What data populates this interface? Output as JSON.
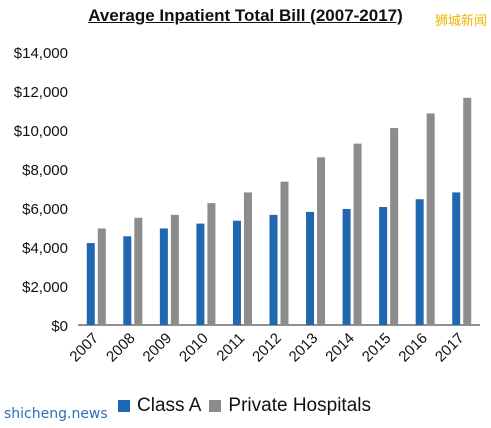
{
  "chart_data": {
    "type": "bar",
    "title": "Average Inpatient Total Bill (2007-2017)",
    "categories": [
      "2007",
      "2008",
      "2009",
      "2010",
      "2011",
      "2012",
      "2013",
      "2014",
      "2015",
      "2016",
      "2017"
    ],
    "series": [
      {
        "name": "Class A",
        "color": "#1f67b1",
        "values": [
          4200,
          4550,
          4950,
          5200,
          5350,
          5650,
          5800,
          5950,
          6050,
          6450,
          6800
        ]
      },
      {
        "name": "Private Hospitals",
        "color": "#8c8c8c",
        "values": [
          4950,
          5500,
          5650,
          6250,
          6800,
          7350,
          8600,
          9300,
          10100,
          10850,
          11650
        ]
      }
    ],
    "ylim": [
      0,
      14000
    ],
    "yticks": [
      "$0",
      "$2,000",
      "$4,000",
      "$6,000",
      "$8,000",
      "$10,000",
      "$12,000",
      "$14,000"
    ],
    "ytick_values": [
      0,
      2000,
      4000,
      6000,
      8000,
      10000,
      12000,
      14000
    ],
    "grid": false,
    "legend_position": "bottom"
  },
  "watermarks": {
    "top_right": "狮城新闻",
    "bottom_left": "shicheng.news"
  }
}
